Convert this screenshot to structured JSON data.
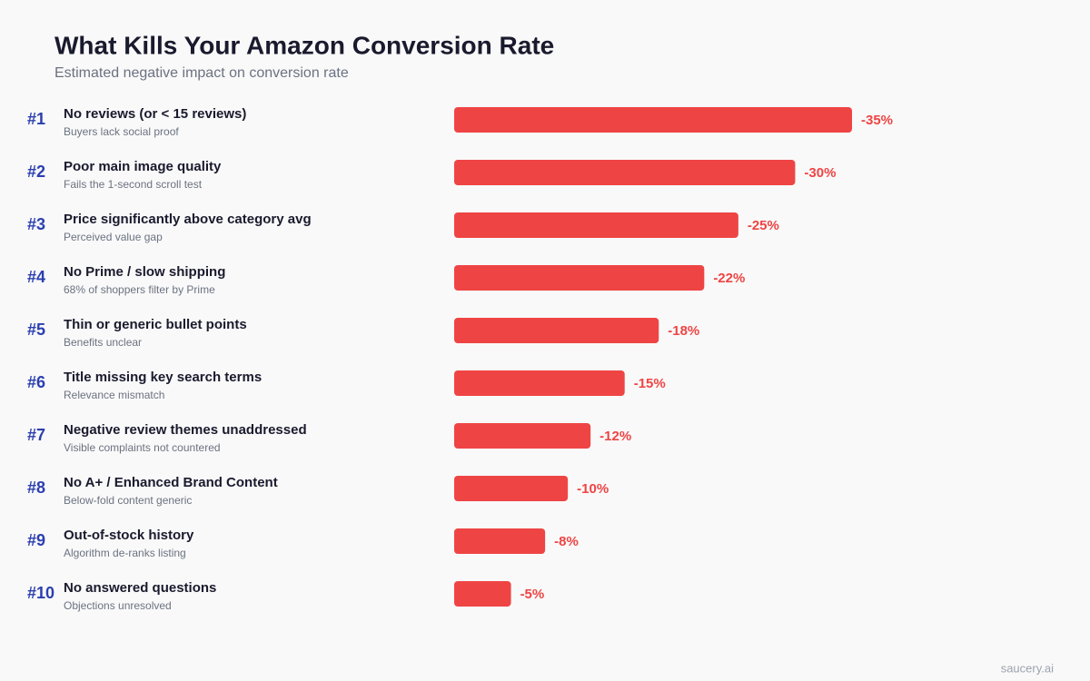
{
  "chart_data": {
    "type": "bar",
    "orientation": "horizontal",
    "title": "What Kills Your Amazon Conversion Rate",
    "subtitle": "Estimated negative impact on conversion rate",
    "ranks": [
      "#1",
      "#2",
      "#3",
      "#4",
      "#5",
      "#6",
      "#7",
      "#8",
      "#9",
      "#10"
    ],
    "categories": [
      "No reviews (or < 15 reviews)",
      "Poor main image quality",
      "Price significantly above category avg",
      "No Prime / slow shipping",
      "Thin or generic bullet points",
      "Title missing key search terms",
      "Negative review themes unaddressed",
      "No A+ / Enhanced Brand Content",
      "Out-of-stock history",
      "No answered questions"
    ],
    "descriptions": [
      "Buyers lack social proof",
      "Fails the 1-second scroll test",
      "Perceived value gap",
      "68% of shoppers filter by Prime",
      "Benefits unclear",
      "Relevance mismatch",
      "Visible complaints not countered",
      "Below-fold content generic",
      "Algorithm de-ranks listing",
      "Objections unresolved"
    ],
    "values": [
      -35,
      -30,
      -25,
      -22,
      -18,
      -15,
      -12,
      -10,
      -8,
      -5
    ],
    "value_labels": [
      "-35%",
      "-30%",
      "-25%",
      "-22%",
      "-18%",
      "-15%",
      "-12%",
      "-10%",
      "-8%",
      "-5%"
    ],
    "color": "#ef4444",
    "footer": "saucery.ai"
  }
}
